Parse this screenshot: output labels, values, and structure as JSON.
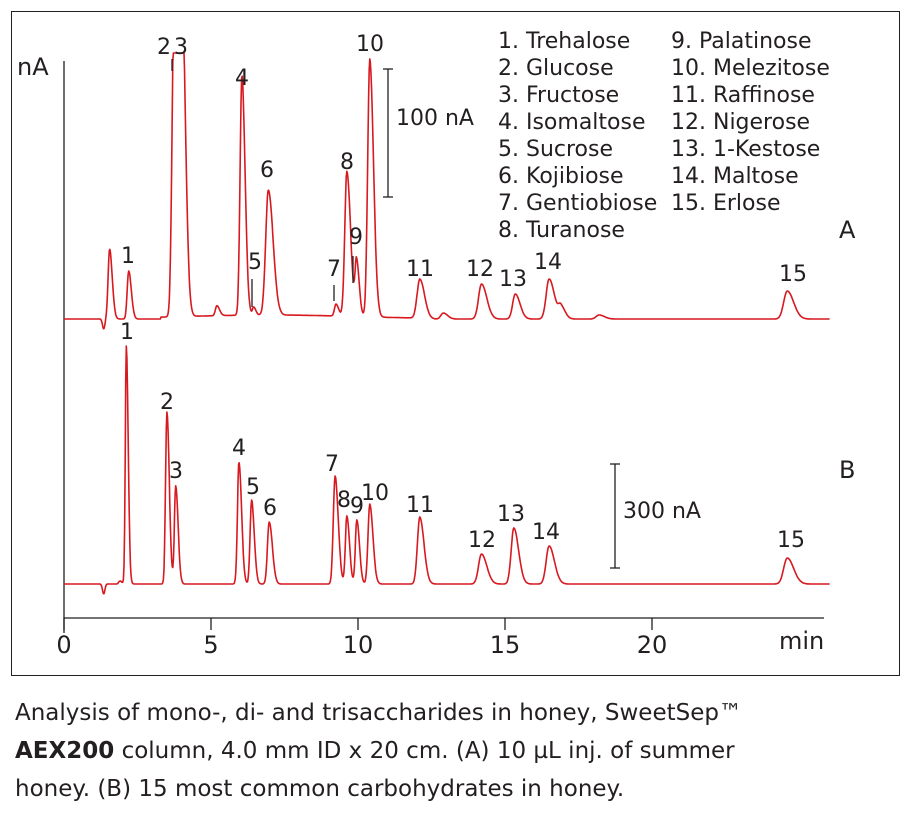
{
  "chart_data": [
    {
      "type": "line",
      "panel": "A",
      "title": "",
      "x_unit": "min",
      "y_unit": "nA",
      "xlim": [
        0,
        26
      ],
      "scale_bar": {
        "label": "100 nA",
        "value": 100
      },
      "peaks": [
        {
          "label": "1",
          "t": 2.2
        },
        {
          "label": "2",
          "t": 3.7
        },
        {
          "label": "3",
          "t": 4.0
        },
        {
          "label": "4",
          "t": 6.0
        },
        {
          "label": "5",
          "t": 6.4
        },
        {
          "label": "6",
          "t": 6.9
        },
        {
          "label": "7",
          "t": 9.2
        },
        {
          "label": "8",
          "t": 9.6
        },
        {
          "label": "9",
          "t": 9.95
        },
        {
          "label": "10",
          "t": 10.4
        },
        {
          "label": "11",
          "t": 12.1
        },
        {
          "label": "12",
          "t": 14.2
        },
        {
          "label": "13",
          "t": 15.3
        },
        {
          "label": "14",
          "t": 16.5
        },
        {
          "label": "15",
          "t": 24.6
        }
      ]
    },
    {
      "type": "line",
      "panel": "B",
      "title": "",
      "x_unit": "min",
      "xlim": [
        0,
        26
      ],
      "scale_bar": {
        "label": "300 nA",
        "value": 300
      },
      "peaks": [
        {
          "label": "1",
          "t": 2.1
        },
        {
          "label": "2",
          "t": 3.5
        },
        {
          "label": "3",
          "t": 3.8
        },
        {
          "label": "4",
          "t": 6.0
        },
        {
          "label": "5",
          "t": 6.4
        },
        {
          "label": "6",
          "t": 7.0
        },
        {
          "label": "7",
          "t": 9.2
        },
        {
          "label": "8",
          "t": 9.65
        },
        {
          "label": "9",
          "t": 9.95
        },
        {
          "label": "10",
          "t": 10.4
        },
        {
          "label": "11",
          "t": 12.1
        },
        {
          "label": "12",
          "t": 14.2
        },
        {
          "label": "13",
          "t": 15.3
        },
        {
          "label": "14",
          "t": 16.5
        },
        {
          "label": "15",
          "t": 24.6
        }
      ]
    }
  ],
  "axis": {
    "y_label": "nA",
    "x_label": "min",
    "x_ticks": [
      "0",
      "5",
      "10",
      "15",
      "20"
    ]
  },
  "panels": {
    "a": "A",
    "b": "B"
  },
  "legend": {
    "left": [
      "1. Trehalose",
      "2. Glucose",
      "3. Fructose",
      "4. Isomaltose",
      "5. Sucrose",
      "6. Kojibiose",
      "7. Gentiobiose",
      "8. Turanose"
    ],
    "right": [
      "9. Palatinose",
      "10. Melezitose",
      "11. Raffinose",
      "12. Nigerose",
      "13. 1-Kestose",
      "14. Maltose",
      "15. Erlose"
    ]
  },
  "caption": {
    "line1": "Analysis of mono-, di- and trisaccharides in honey, SweetSep™",
    "bold": "AEX200",
    "line2_rest": " column, 4.0 mm ID x 20 cm. (A) 10 µL inj. of summer",
    "line3": "honey. (B) 15 most common carbohydrates in honey."
  },
  "colors": {
    "trace": "#d71920",
    "ink": "#231f20"
  }
}
